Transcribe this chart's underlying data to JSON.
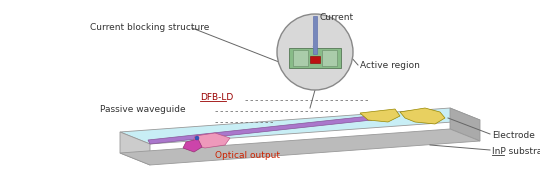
{
  "fig_width": 5.4,
  "fig_height": 1.76,
  "dpi": 100,
  "bg_color": "#ffffff",
  "labels": {
    "current_blocking": "Current blocking structure",
    "current": "Current",
    "active_region": "Active region",
    "dfb_ld": "DFB-LD",
    "passive_waveguide": "Passive waveguide",
    "optical_output": "Optical output",
    "electrode": "Electrode",
    "inp_substrate": "InP substrate"
  },
  "colors": {
    "chip_top": "#c8eef5",
    "chip_front": "#cccccc",
    "chip_right": "#aaaaaa",
    "chip_bottom": "#bbbbbb",
    "waveguide_purple": "#aa77cc",
    "electrode_yellow": "#e8d060",
    "electrode_yellow2": "#d4c050",
    "circle_bg": "#d8d8d8",
    "circle_green_outer": "#88bb88",
    "circle_green_inner": "#aaccaa",
    "pillar_blue": "#7788bb",
    "active_red": "#bb1111",
    "optical_pink": "#ee99bb",
    "optical_magenta": "#cc44aa",
    "text_dark": "#333333",
    "text_red": "#cc2200",
    "text_dfb": "#000099",
    "dashed_line": "#777777",
    "leader_line": "#666666"
  }
}
